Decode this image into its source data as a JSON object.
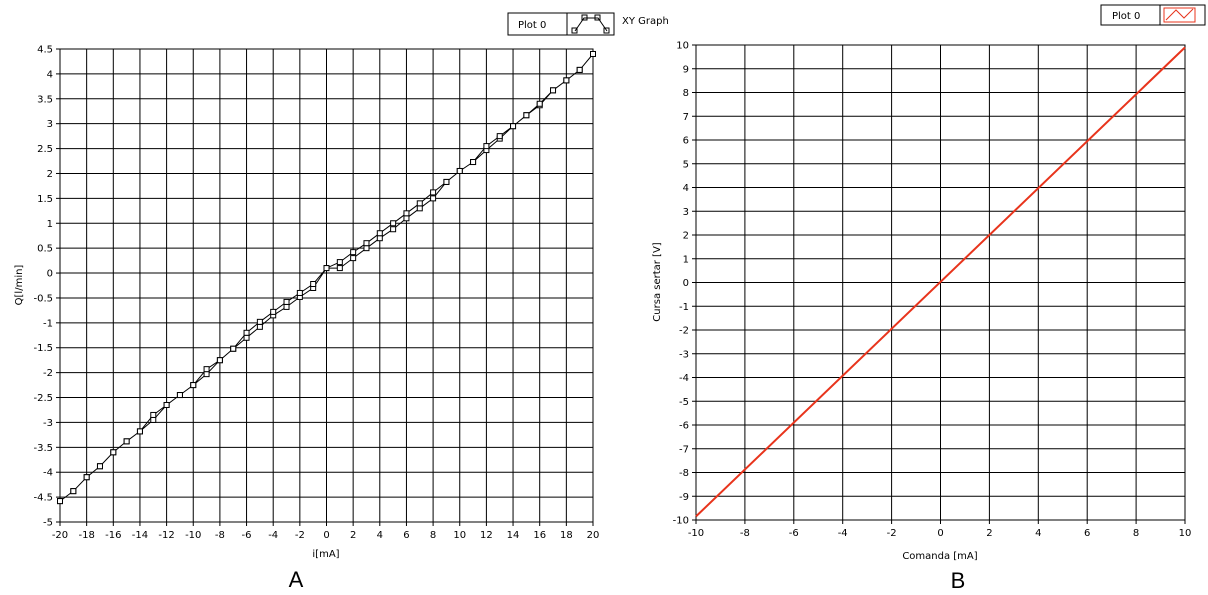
{
  "chart_data": [
    {
      "type": "line",
      "panel_letter": "A",
      "title": "",
      "xlabel": "i[mA]",
      "ylabel": "Q[l/min]",
      "xlim": [
        -20,
        20
      ],
      "ylim": [
        -5,
        4.5
      ],
      "x_ticks": [
        -20,
        -18,
        -16,
        -14,
        -12,
        -10,
        -8,
        -6,
        -4,
        -2,
        0,
        2,
        4,
        6,
        8,
        10,
        12,
        14,
        16,
        18,
        20
      ],
      "y_ticks": [
        -5,
        -4.5,
        -4,
        -3.5,
        -3,
        -2.5,
        -2,
        -1.5,
        -1,
        -0.5,
        0,
        0.5,
        1,
        1.5,
        2,
        2.5,
        3,
        3.5,
        4,
        4.5
      ],
      "grid": true,
      "legend": {
        "placement": "top-right",
        "entries": [
          "Plot 0"
        ],
        "caption": "XY Graph"
      },
      "series": [
        {
          "name": "Plot 0",
          "color": "#000000",
          "marker": "square",
          "x": [
            -20,
            -19,
            -18,
            -17,
            -16,
            -15,
            -14,
            -13,
            -12,
            -11,
            -10,
            -9,
            -8,
            -7,
            -6,
            -5,
            -4,
            -3,
            -2,
            -1,
            0,
            1,
            2,
            3,
            4,
            5,
            6,
            7,
            8,
            9,
            10,
            11,
            12,
            13,
            14,
            15,
            16,
            17,
            18,
            19,
            20,
            19,
            18,
            17,
            16,
            15,
            14,
            13,
            12,
            11,
            10,
            9,
            8,
            7,
            6,
            5,
            4,
            3,
            2,
            1,
            0,
            -1,
            -2,
            -3,
            -4,
            -5,
            -6,
            -7,
            -8,
            -9,
            -10,
            -11,
            -12,
            -13,
            -14,
            -15,
            -16,
            -17,
            -18,
            -19,
            -20
          ],
          "y": [
            -4.58,
            -4.38,
            -4.1,
            -3.88,
            -3.6,
            -3.38,
            -3.18,
            -2.95,
            -2.65,
            -2.45,
            -2.25,
            -2.03,
            -1.75,
            -1.52,
            -1.3,
            -1.08,
            -0.85,
            -0.68,
            -0.48,
            -0.3,
            0.1,
            0.1,
            0.3,
            0.5,
            0.7,
            0.88,
            1.1,
            1.3,
            1.5,
            1.83,
            2.05,
            2.23,
            2.47,
            2.7,
            2.95,
            3.17,
            3.37,
            3.67,
            3.87,
            4.08,
            4.4,
            4.08,
            3.87,
            3.67,
            3.4,
            3.17,
            2.95,
            2.75,
            2.55,
            2.23,
            2.05,
            1.83,
            1.62,
            1.4,
            1.2,
            1.0,
            0.8,
            0.6,
            0.42,
            0.22,
            0.1,
            -0.22,
            -0.4,
            -0.58,
            -0.78,
            -0.98,
            -1.2,
            -1.52,
            -1.75,
            -1.93,
            -2.25,
            -2.45,
            -2.65,
            -2.85,
            -3.18,
            -3.38,
            -3.6,
            -3.88,
            -4.1,
            -4.38,
            -4.58
          ]
        }
      ]
    },
    {
      "type": "line",
      "panel_letter": "B",
      "title": "",
      "xlabel": "Comanda [mA]",
      "ylabel": "Cursa sertar [V]",
      "xlim": [
        -10,
        10
      ],
      "ylim": [
        -10,
        10
      ],
      "x_ticks": [
        -10,
        -8,
        -6,
        -4,
        -2,
        0,
        2,
        4,
        6,
        8,
        10
      ],
      "y_ticks": [
        -10,
        -9,
        -8,
        -7,
        -6,
        -5,
        -4,
        -3,
        -2,
        -1,
        0,
        1,
        2,
        3,
        4,
        5,
        6,
        7,
        8,
        9,
        10
      ],
      "grid": true,
      "legend": {
        "placement": "top-right",
        "entries": [
          "Plot 0"
        ]
      },
      "series": [
        {
          "name": "Plot 0",
          "color": "#e8341c",
          "marker": "none",
          "x": [
            -10,
            10
          ],
          "y": [
            -9.85,
            9.9
          ]
        }
      ]
    }
  ]
}
